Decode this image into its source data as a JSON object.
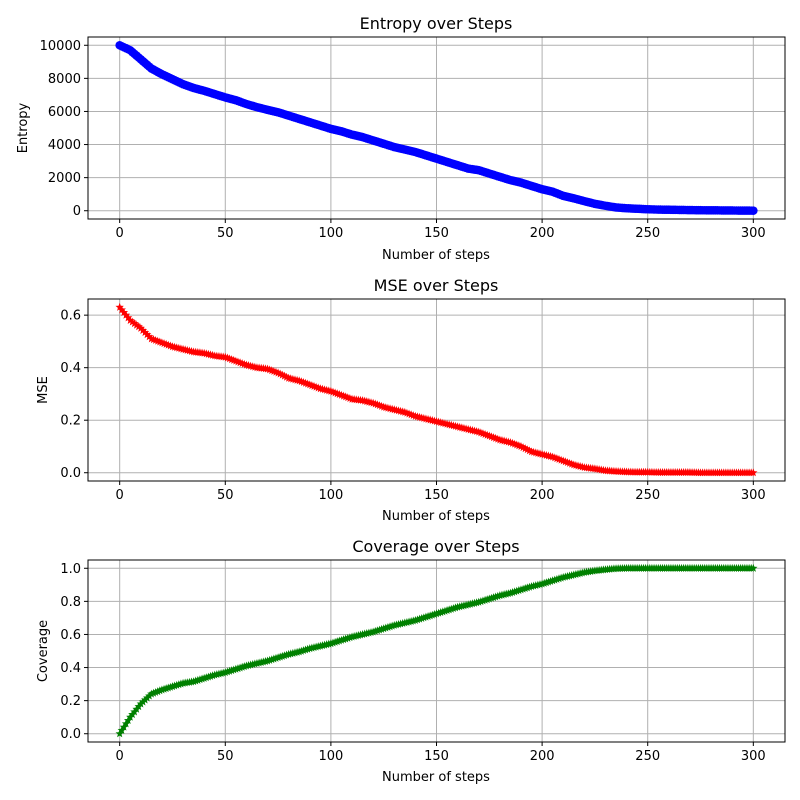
{
  "chart_data": [
    {
      "type": "scatter",
      "title": "Entropy over Steps",
      "xlabel": "Number of steps",
      "ylabel": "Entropy",
      "xlim": [
        -15,
        315
      ],
      "ylim": [
        -500,
        10500
      ],
      "xticks": [
        0,
        50,
        100,
        150,
        200,
        250,
        300
      ],
      "yticks": [
        0,
        2000,
        4000,
        6000,
        8000,
        10000
      ],
      "xtick_labels": [
        "0",
        "50",
        "100",
        "150",
        "200",
        "250",
        "300"
      ],
      "ytick_labels": [
        "0",
        "2000",
        "4000",
        "6000",
        "8000",
        "10000"
      ],
      "grid": true,
      "marker": "circle",
      "color": "#0000ff",
      "series": [
        {
          "x": [
            0,
            5,
            10,
            15,
            20,
            25,
            30,
            35,
            40,
            45,
            50,
            55,
            60,
            65,
            70,
            75,
            80,
            85,
            90,
            95,
            100,
            105,
            110,
            115,
            120,
            125,
            130,
            135,
            140,
            145,
            150,
            155,
            160,
            165,
            170,
            175,
            180,
            185,
            190,
            195,
            200,
            205,
            210,
            215,
            220,
            225,
            230,
            235,
            240,
            245,
            250,
            255,
            260,
            265,
            270,
            275,
            280,
            285,
            290,
            295,
            300
          ],
          "y": [
            10000,
            9700,
            9150,
            8600,
            8250,
            7950,
            7650,
            7420,
            7250,
            7050,
            6850,
            6680,
            6450,
            6260,
            6100,
            5950,
            5750,
            5550,
            5350,
            5150,
            4950,
            4800,
            4600,
            4450,
            4250,
            4050,
            3850,
            3700,
            3550,
            3350,
            3150,
            2950,
            2750,
            2550,
            2450,
            2250,
            2050,
            1850,
            1700,
            1500,
            1300,
            1150,
            900,
            750,
            580,
            420,
            300,
            200,
            150,
            120,
            90,
            70,
            60,
            50,
            40,
            30,
            25,
            20,
            15,
            10,
            5
          ]
        }
      ]
    },
    {
      "type": "scatter",
      "title": "MSE over Steps",
      "xlabel": "Number of steps",
      "ylabel": "MSE",
      "xlim": [
        -15,
        315
      ],
      "ylim": [
        -0.0315,
        0.6615
      ],
      "xticks": [
        0,
        50,
        100,
        150,
        200,
        250,
        300
      ],
      "yticks": [
        0.0,
        0.2,
        0.4,
        0.6
      ],
      "xtick_labels": [
        "0",
        "50",
        "100",
        "150",
        "200",
        "250",
        "300"
      ],
      "ytick_labels": [
        "0.0",
        "0.2",
        "0.4",
        "0.6"
      ],
      "grid": true,
      "marker": "star",
      "color": "#ff0000",
      "series": [
        {
          "x": [
            0,
            5,
            10,
            15,
            20,
            25,
            30,
            35,
            40,
            45,
            50,
            55,
            60,
            65,
            70,
            75,
            80,
            85,
            90,
            95,
            100,
            105,
            110,
            115,
            120,
            125,
            130,
            135,
            140,
            145,
            150,
            155,
            160,
            165,
            170,
            175,
            180,
            185,
            190,
            195,
            200,
            205,
            210,
            215,
            220,
            225,
            230,
            235,
            240,
            245,
            250,
            255,
            260,
            265,
            270,
            275,
            280,
            285,
            290,
            295,
            300
          ],
          "y": [
            0.63,
            0.58,
            0.55,
            0.51,
            0.495,
            0.48,
            0.47,
            0.46,
            0.455,
            0.445,
            0.44,
            0.425,
            0.41,
            0.4,
            0.395,
            0.38,
            0.36,
            0.35,
            0.335,
            0.32,
            0.31,
            0.295,
            0.28,
            0.275,
            0.265,
            0.25,
            0.24,
            0.23,
            0.215,
            0.205,
            0.195,
            0.185,
            0.175,
            0.165,
            0.155,
            0.14,
            0.125,
            0.115,
            0.1,
            0.08,
            0.07,
            0.06,
            0.045,
            0.03,
            0.02,
            0.015,
            0.008,
            0.005,
            0.003,
            0.002,
            0.002,
            0.001,
            0.001,
            0.001,
            0.001,
            0.0,
            0.0,
            0.0,
            0.0,
            0.0,
            0.0
          ]
        }
      ]
    },
    {
      "type": "scatter",
      "title": "Coverage over Steps",
      "xlabel": "Number of steps",
      "ylabel": "Coverage",
      "xlim": [
        -15,
        315
      ],
      "ylim": [
        -0.05,
        1.05
      ],
      "xticks": [
        0,
        50,
        100,
        150,
        200,
        250,
        300
      ],
      "yticks": [
        0.0,
        0.2,
        0.4,
        0.6,
        0.8,
        1.0
      ],
      "xtick_labels": [
        "0",
        "50",
        "100",
        "150",
        "200",
        "250",
        "300"
      ],
      "ytick_labels": [
        "0.0",
        "0.2",
        "0.4",
        "0.6",
        "0.8",
        "1.0"
      ],
      "grid": true,
      "marker": "star",
      "color": "#008000",
      "series": [
        {
          "x": [
            0,
            5,
            10,
            15,
            20,
            25,
            30,
            35,
            40,
            45,
            50,
            55,
            60,
            65,
            70,
            75,
            80,
            85,
            90,
            95,
            100,
            105,
            110,
            115,
            120,
            125,
            130,
            135,
            140,
            145,
            150,
            155,
            160,
            165,
            170,
            175,
            180,
            185,
            190,
            195,
            200,
            205,
            210,
            215,
            220,
            225,
            230,
            235,
            240,
            245,
            250,
            255,
            260,
            265,
            270,
            275,
            280,
            285,
            290,
            295,
            300
          ],
          "y": [
            0.0,
            0.1,
            0.18,
            0.24,
            0.265,
            0.285,
            0.305,
            0.315,
            0.335,
            0.355,
            0.37,
            0.39,
            0.41,
            0.425,
            0.44,
            0.46,
            0.48,
            0.495,
            0.515,
            0.53,
            0.545,
            0.565,
            0.585,
            0.6,
            0.615,
            0.635,
            0.655,
            0.67,
            0.685,
            0.705,
            0.725,
            0.745,
            0.765,
            0.78,
            0.795,
            0.815,
            0.835,
            0.85,
            0.87,
            0.89,
            0.905,
            0.925,
            0.945,
            0.96,
            0.975,
            0.985,
            0.992,
            0.998,
            1.0,
            1.0,
            1.0,
            1.0,
            1.0,
            1.0,
            1.0,
            1.0,
            1.0,
            1.0,
            1.0,
            1.0,
            1.0
          ]
        }
      ]
    }
  ]
}
